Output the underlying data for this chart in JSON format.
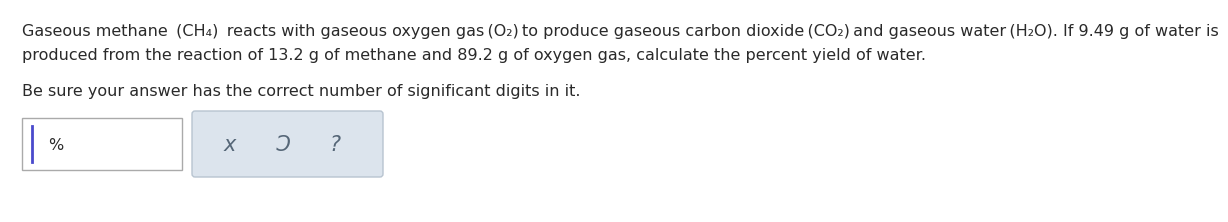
{
  "bg_color": "#ffffff",
  "text_color": "#2a2a2a",
  "line1": "Gaseous methane  (CH₄)  reacts with gaseous oxygen gas (O₂) to produce gaseous carbon dioxide (CO₂) and gaseous water (H₂O). If 9.49 g of water is",
  "line2": "produced from the reaction of 13.2 g of methane and 89.2 g of oxygen gas, calculate the percent yield of water.",
  "line3": "Be sure your answer has the correct number of significant digits in it.",
  "font_size_main": 11.5,
  "cursor_color": "#4a4acc",
  "input_border_color": "#aaaaaa",
  "button_bg_color": "#dce4ed",
  "button_border_color": "#b8c4d0",
  "button_text_color": "#556677",
  "percent_text": "%",
  "button_symbols": [
    "x",
    "Ɔ",
    "?"
  ]
}
